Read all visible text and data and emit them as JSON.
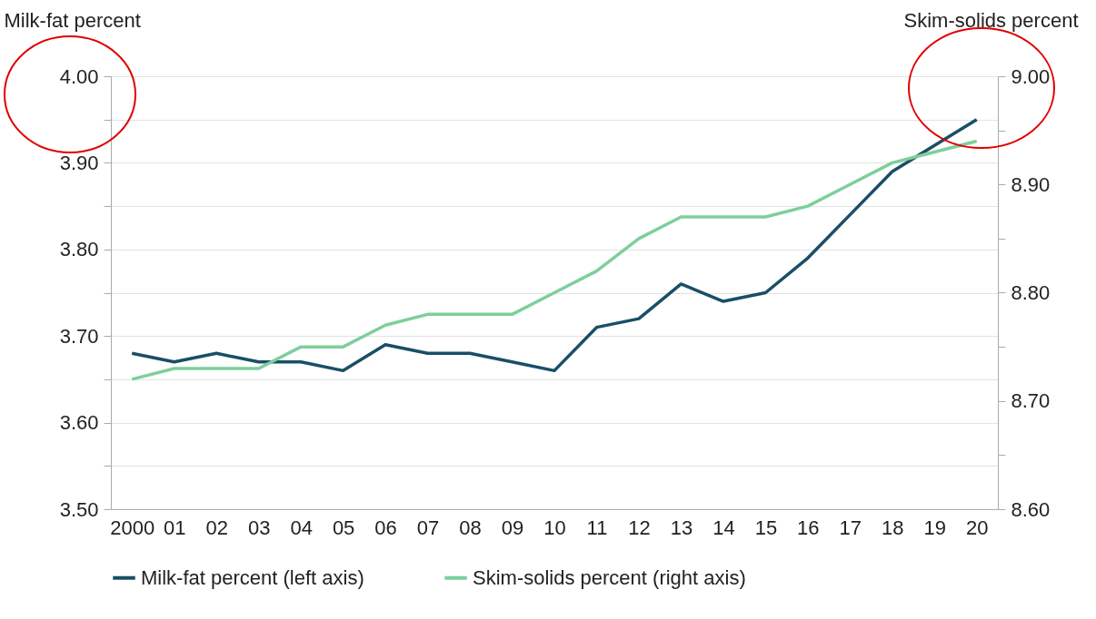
{
  "chart_data": {
    "type": "line",
    "ylabel": "Milk-fat percent",
    "y2label": "Skim-solids percent",
    "categories": [
      "2000",
      "01",
      "02",
      "03",
      "04",
      "05",
      "06",
      "07",
      "08",
      "09",
      "10",
      "11",
      "12",
      "13",
      "14",
      "15",
      "16",
      "17",
      "18",
      "19",
      "20"
    ],
    "series": [
      {
        "name": "Milk-fat percent (left axis)",
        "color": "#1a4e66",
        "values": [
          3.68,
          3.67,
          3.68,
          3.67,
          3.67,
          3.66,
          3.69,
          3.68,
          3.68,
          3.67,
          3.66,
          3.71,
          3.72,
          3.76,
          3.74,
          3.75,
          3.79,
          3.84,
          3.89,
          3.92,
          3.95
        ]
      },
      {
        "name": "Skim-solids percent (right axis)",
        "color": "#7dcf9b",
        "axis": "y2",
        "values": [
          8.72,
          8.73,
          8.73,
          8.73,
          8.75,
          8.75,
          8.77,
          8.78,
          8.78,
          8.78,
          8.8,
          8.82,
          8.85,
          8.87,
          8.87,
          8.87,
          8.88,
          8.9,
          8.92,
          8.93,
          8.94
        ]
      }
    ],
    "ylim": [
      3.5,
      4.0
    ],
    "yticks": [
      {
        "value": 3.5,
        "label": "3.50"
      },
      {
        "value": 3.55,
        "label": null
      },
      {
        "value": 3.6,
        "label": "3.60"
      },
      {
        "value": 3.65,
        "label": null
      },
      {
        "value": 3.7,
        "label": "3.70"
      },
      {
        "value": 3.75,
        "label": null
      },
      {
        "value": 3.8,
        "label": "3.80"
      },
      {
        "value": 3.85,
        "label": null
      },
      {
        "value": 3.9,
        "label": "3.90"
      },
      {
        "value": 3.95,
        "label": null
      },
      {
        "value": 4.0,
        "label": "4.00"
      }
    ],
    "y2lim": [
      8.6,
      9.0
    ],
    "y2ticks": [
      {
        "value": 8.6,
        "label": "8.60"
      },
      {
        "value": 8.65,
        "label": null
      },
      {
        "value": 8.7,
        "label": "8.70"
      },
      {
        "value": 8.75,
        "label": null
      },
      {
        "value": 8.8,
        "label": "8.80"
      },
      {
        "value": 8.85,
        "label": null
      },
      {
        "value": 8.9,
        "label": "8.90"
      },
      {
        "value": 8.95,
        "label": null
      },
      {
        "value": 9.0,
        "label": "9.00"
      }
    ],
    "grid": "y",
    "legend": "bottom",
    "marker": "none",
    "line_style": "solid"
  }
}
